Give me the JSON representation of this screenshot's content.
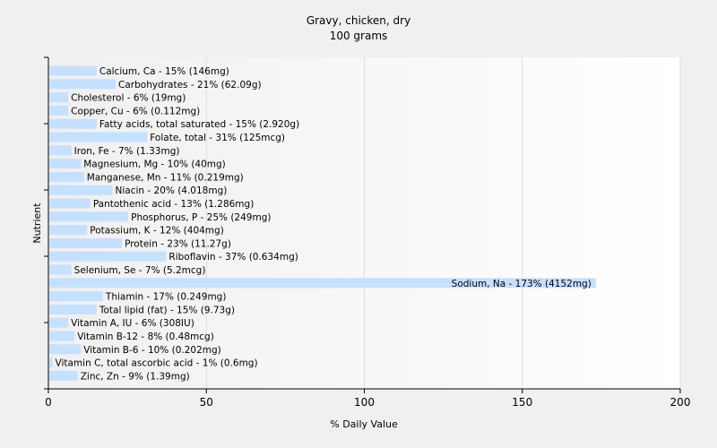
{
  "chart_data": {
    "type": "bar",
    "orientation": "horizontal",
    "title": "Gravy, chicken, dry",
    "subtitle": "100 grams",
    "xlabel": "% Daily Value",
    "ylabel": "Nutrient",
    "xlim": [
      0,
      200
    ],
    "xticks": [
      0,
      50,
      100,
      150,
      200
    ],
    "grid": true,
    "bar_color": "#c6e0ff",
    "categories": [
      "Calcium, Ca",
      "Carbohydrates",
      "Cholesterol",
      "Copper, Cu",
      "Fatty acids, total saturated",
      "Folate, total",
      "Iron, Fe",
      "Magnesium, Mg",
      "Manganese, Mn",
      "Niacin",
      "Pantothenic acid",
      "Phosphorus, P",
      "Potassium, K",
      "Protein",
      "Riboflavin",
      "Selenium, Se",
      "Sodium, Na",
      "Thiamin",
      "Total lipid (fat)",
      "Vitamin A, IU",
      "Vitamin B-12",
      "Vitamin B-6",
      "Vitamin C, total ascorbic acid",
      "Zinc, Zn"
    ],
    "values": [
      15,
      21,
      6,
      6,
      15,
      31,
      7,
      10,
      11,
      20,
      13,
      25,
      12,
      23,
      37,
      7,
      173,
      17,
      15,
      6,
      8,
      10,
      1,
      9
    ],
    "labels": [
      "Calcium, Ca - 15% (146mg)",
      "Carbohydrates - 21% (62.09g)",
      "Cholesterol - 6% (19mg)",
      "Copper, Cu - 6% (0.112mg)",
      "Fatty acids, total saturated - 15% (2.920g)",
      "Folate, total - 31% (125mcg)",
      "Iron, Fe - 7% (1.33mg)",
      "Magnesium, Mg - 10% (40mg)",
      "Manganese, Mn - 11% (0.219mg)",
      "Niacin - 20% (4.018mg)",
      "Pantothenic acid - 13% (1.286mg)",
      "Phosphorus, P - 25% (249mg)",
      "Potassium, K - 12% (404mg)",
      "Protein - 23% (11.27g)",
      "Riboflavin - 37% (0.634mg)",
      "Selenium, Se - 7% (5.2mcg)",
      "Sodium, Na - 173% (4152mg)",
      "Thiamin - 17% (0.249mg)",
      "Total lipid (fat) - 15% (9.73g)",
      "Vitamin A, IU - 6% (308IU)",
      "Vitamin B-12 - 8% (0.48mcg)",
      "Vitamin B-6 - 10% (0.202mg)",
      "Vitamin C, total ascorbic acid - 1% (0.6mg)",
      "Zinc, Zn - 9% (1.39mg)"
    ]
  }
}
